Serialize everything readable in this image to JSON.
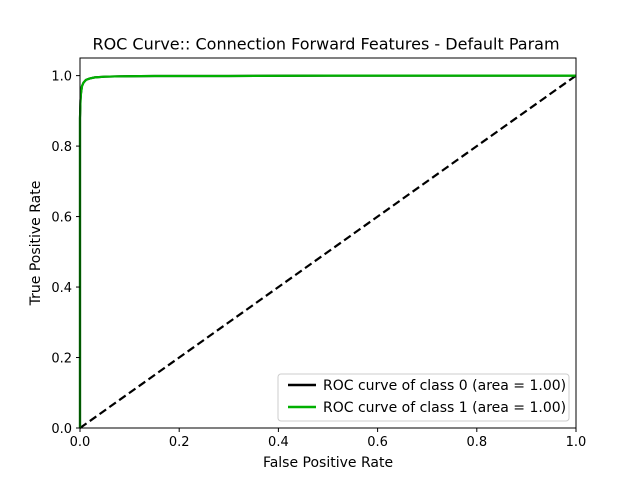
{
  "chart_data": {
    "type": "line",
    "title": "ROC Curve:: Connection Forward Features - Default Param",
    "xlabel": "False Positive Rate",
    "ylabel": "True Positive Rate",
    "xlim": [
      0.0,
      1.0
    ],
    "ylim": [
      0.0,
      1.05
    ],
    "xticks": [
      0.0,
      0.2,
      0.4,
      0.6,
      0.8,
      1.0
    ],
    "yticks": [
      0.0,
      0.2,
      0.4,
      0.6,
      0.8,
      1.0
    ],
    "xtick_labels": [
      "0.0",
      "0.2",
      "0.4",
      "0.6",
      "0.8",
      "1.0"
    ],
    "ytick_labels": [
      "0.0",
      "0.2",
      "0.4",
      "0.6",
      "0.8",
      "1.0"
    ],
    "grid": false,
    "legend_position": "lower-right",
    "series": [
      {
        "name": "ROC curve of class 0 (area = 1.00)",
        "color": "#000000",
        "x": [
          0.0,
          0.0,
          0.001,
          0.002,
          0.004,
          0.007,
          0.012,
          0.02,
          0.03,
          0.05,
          0.08,
          0.15,
          0.3,
          0.5,
          0.7,
          0.9,
          1.0
        ],
        "y": [
          0.0,
          0.88,
          0.93,
          0.95,
          0.97,
          0.98,
          0.988,
          0.992,
          0.995,
          0.997,
          0.998,
          0.999,
          0.999,
          1.0,
          1.0,
          1.0,
          1.0
        ]
      },
      {
        "name": "ROC curve of class 1 (area = 1.00)",
        "color": "#00b000",
        "x": [
          0.0,
          0.0,
          0.001,
          0.002,
          0.004,
          0.007,
          0.012,
          0.02,
          0.03,
          0.05,
          0.08,
          0.15,
          0.3,
          0.5,
          0.7,
          0.9,
          1.0
        ],
        "y": [
          0.0,
          0.88,
          0.93,
          0.95,
          0.97,
          0.98,
          0.988,
          0.992,
          0.995,
          0.997,
          0.998,
          0.999,
          0.999,
          1.0,
          1.0,
          1.0,
          1.0
        ]
      }
    ],
    "reference_line": {
      "x": [
        0.0,
        1.0
      ],
      "y": [
        0.0,
        1.0
      ],
      "style": "dashed",
      "color": "#000000"
    }
  }
}
